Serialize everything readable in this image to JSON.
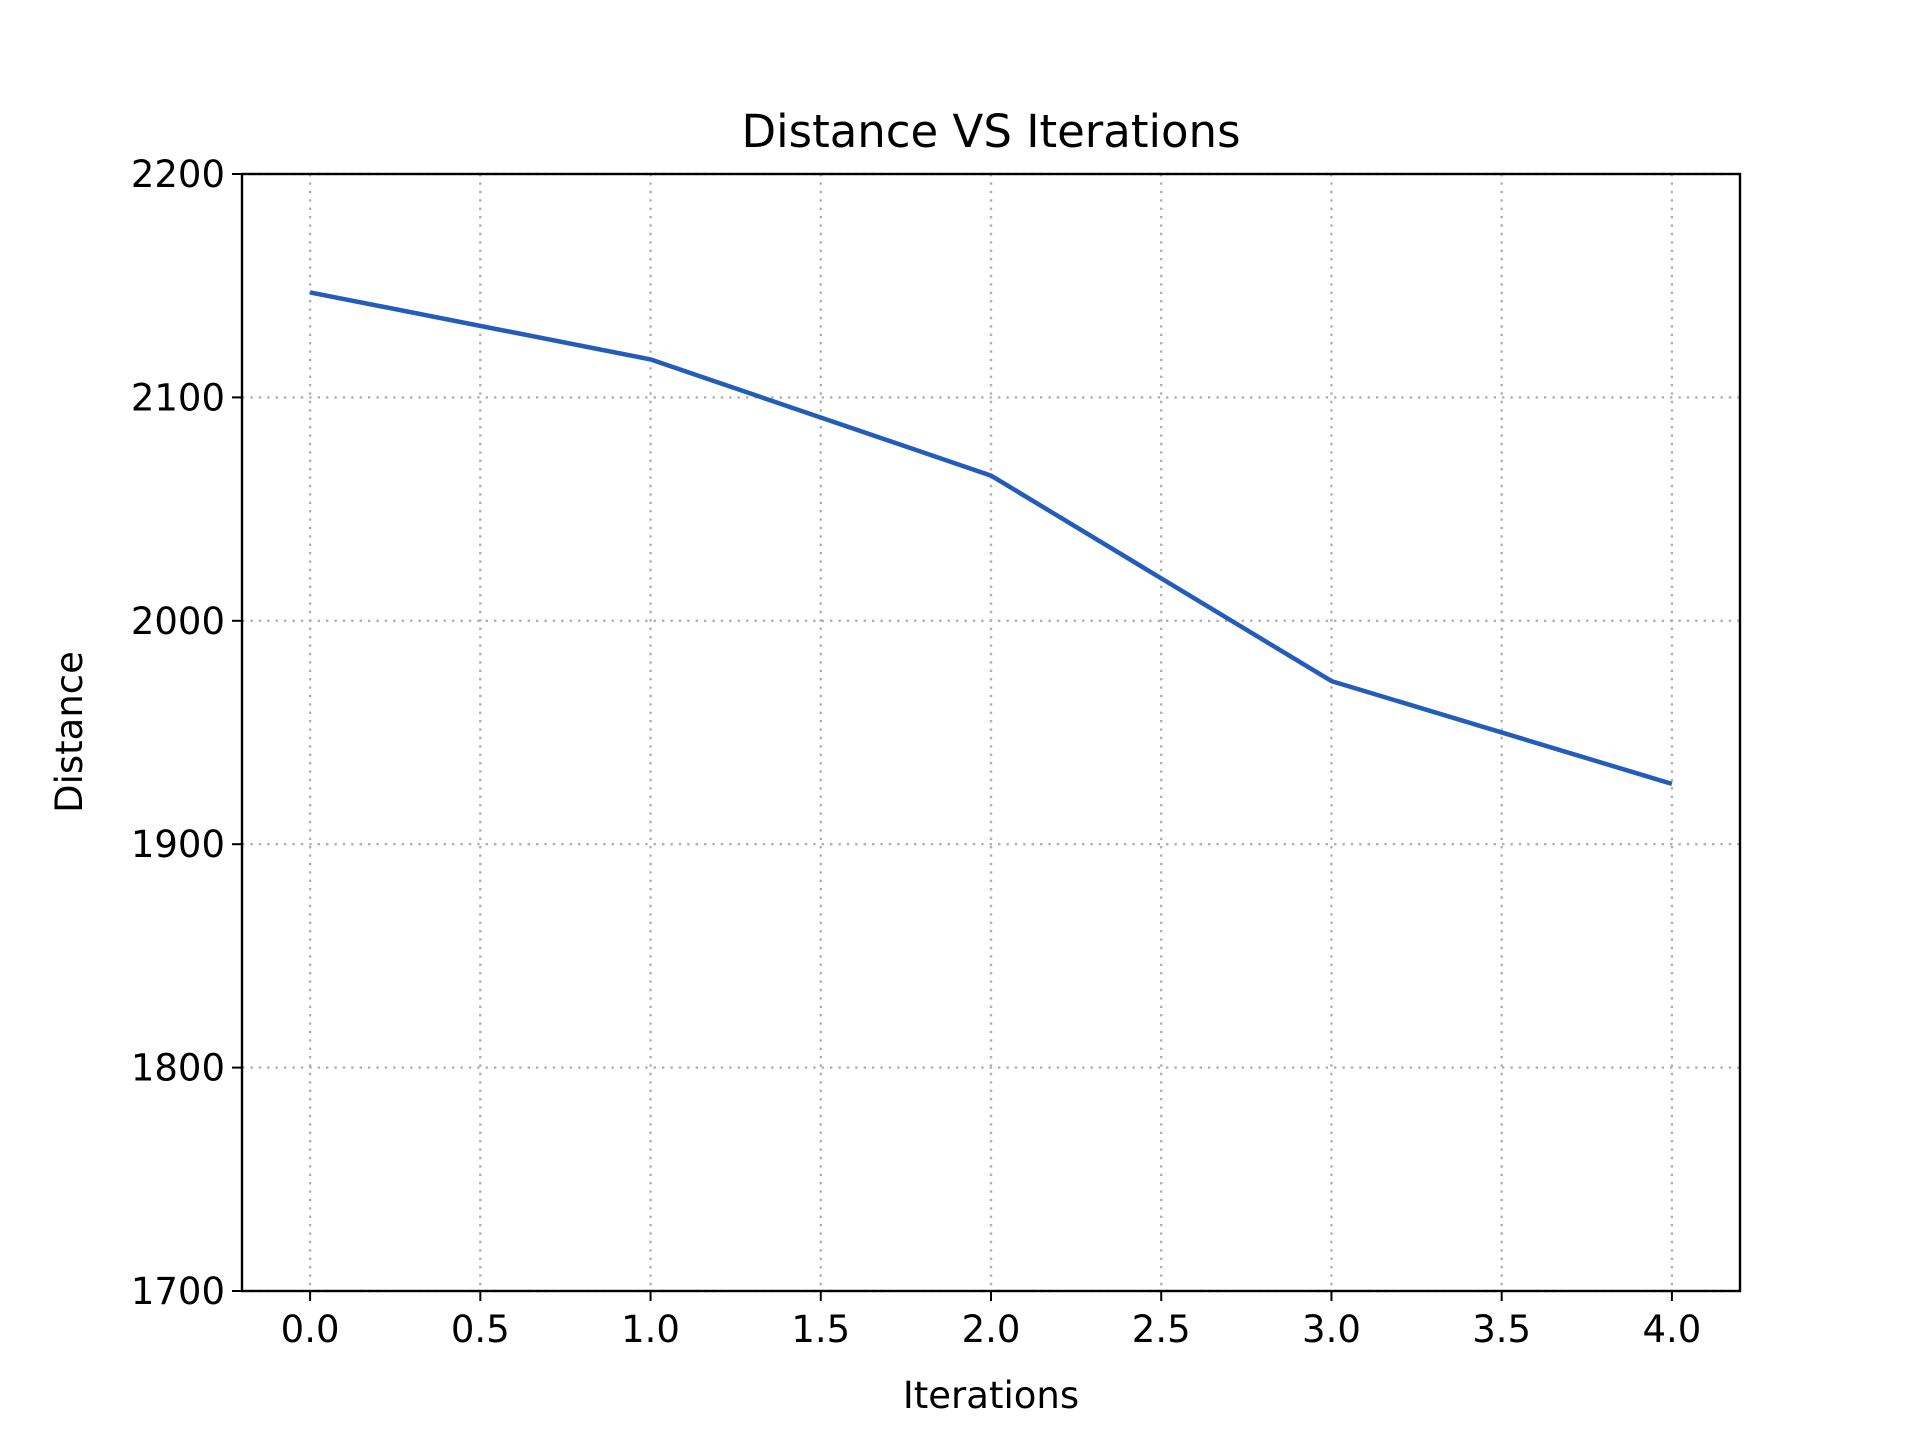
{
  "chart_data": {
    "type": "line",
    "title": "Distance VS Iterations",
    "xlabel": "Iterations",
    "ylabel": "Distance",
    "xlim": [
      -0.2,
      4.2
    ],
    "ylim": [
      1700,
      2200
    ],
    "x_ticks": [
      "0.0",
      "0.5",
      "1.0",
      "1.5",
      "2.0",
      "2.5",
      "3.0",
      "3.5",
      "4.0"
    ],
    "y_ticks": [
      "1700",
      "1800",
      "1900",
      "2000",
      "2100",
      "2200"
    ],
    "grid": true,
    "series": [
      {
        "color": "#235cb9",
        "x": [
          0,
          1,
          2,
          3,
          4
        ],
        "y": [
          2147,
          2117,
          2065,
          1973,
          1927
        ]
      }
    ]
  }
}
